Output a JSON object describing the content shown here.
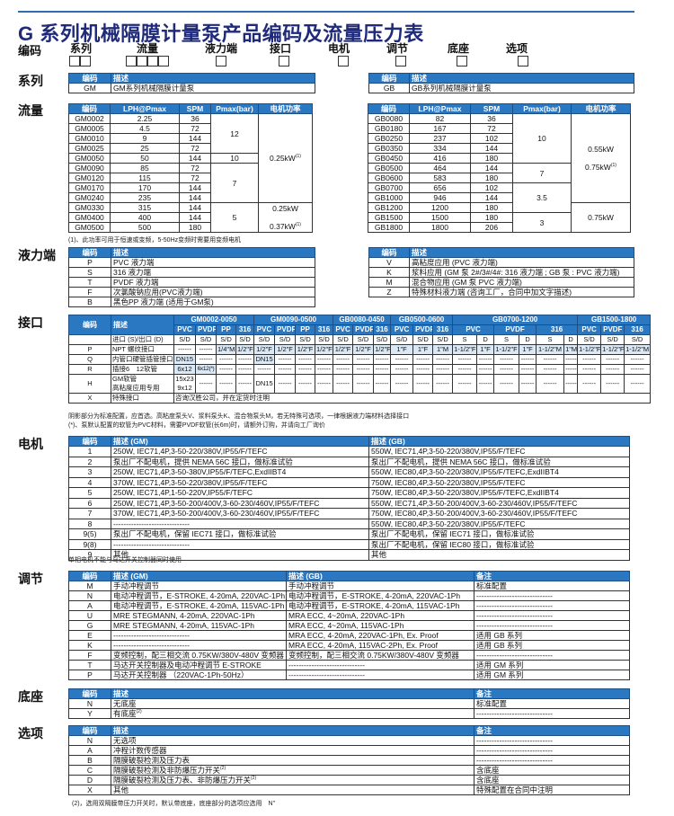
{
  "title": "G 系列机械隔膜计量泵产品编码及流量压力表",
  "code_row": {
    "label": "编码",
    "fields": [
      {
        "label": "系列",
        "boxes": 2
      },
      {
        "label": "流量",
        "boxes": 4
      },
      {
        "label": "液力端",
        "boxes": 1
      },
      {
        "label": "接口",
        "boxes": 1
      },
      {
        "label": "电机",
        "boxes": 1
      },
      {
        "label": "调节",
        "boxes": 1
      },
      {
        "label": "底座",
        "boxes": 1
      },
      {
        "label": "选项",
        "boxes": 1
      }
    ]
  },
  "series": {
    "label": "系列",
    "tables": [
      {
        "headers": [
          "编码",
          "描述"
        ],
        "rows": [
          [
            "GM",
            "GM系列机械隔膜计量泵"
          ]
        ]
      },
      {
        "headers": [
          "编码",
          "描述"
        ],
        "rows": [
          [
            "GB",
            "GB系列机械隔膜计量泵"
          ]
        ]
      }
    ]
  },
  "flow": {
    "label": "流量",
    "note": "(1)、此功率可用于恒速或变频，5-50Hz变频时需要用变频电机",
    "tables": [
      {
        "headers": [
          "编码",
          "LPH@Pmax",
          "SPM",
          "Pmax(bar)",
          "电机功率"
        ],
        "rows": [
          [
            "GM0002",
            "2.25",
            "36"
          ],
          [
            "GM0005",
            "4.5",
            "72"
          ],
          [
            "GM0010",
            "9",
            "144"
          ],
          [
            "GM0025",
            "25",
            "72"
          ],
          [
            "GM0050",
            "50",
            "144"
          ],
          [
            "GM0090",
            "85",
            "72"
          ],
          [
            "GM0120",
            "115",
            "72"
          ],
          [
            "GM0170",
            "170",
            "144"
          ],
          [
            "GM0240",
            "235",
            "144"
          ],
          [
            "GM0330",
            "315",
            "144"
          ],
          [
            "GM0400",
            "400",
            "144"
          ],
          [
            "GM0500",
            "500",
            "180"
          ]
        ],
        "pmax_groups": [
          {
            "value": "12",
            "rows": 4
          },
          {
            "value": "10",
            "rows": 1
          },
          {
            "value": "7",
            "rows": 4
          },
          {
            "value": "5",
            "rows": 3
          }
        ],
        "power_groups": [
          {
            "lines": [
              {
                "text": "0.25kW",
                "sup": "(1)"
              }
            ],
            "rows": 9
          },
          {
            "lines": [
              {
                "text": "0.25kW",
                "sup": ""
              },
              {
                "text": "0.37kW",
                "sup": "(1)"
              }
            ],
            "rows": 3
          }
        ]
      },
      {
        "headers": [
          "编码",
          "LPH@Pmax",
          "SPM",
          "Pmax(bar)",
          "电机功率"
        ],
        "rows": [
          [
            "GB0080",
            "82",
            "36"
          ],
          [
            "GB0180",
            "167",
            "72"
          ],
          [
            "GB0250",
            "237",
            "102"
          ],
          [
            "GB0350",
            "334",
            "144"
          ],
          [
            "GB0450",
            "416",
            "180"
          ],
          [
            "GB0500",
            "464",
            "144"
          ],
          [
            "GB0600",
            "583",
            "180"
          ],
          [
            "GB0700",
            "656",
            "102"
          ],
          [
            "GB1000",
            "946",
            "144"
          ],
          [
            "GB1200",
            "1200",
            "180"
          ],
          [
            "GB1500",
            "1500",
            "180"
          ],
          [
            "GB1800",
            "1800",
            "206"
          ]
        ],
        "pmax_groups": [
          {
            "value": "10",
            "rows": 5
          },
          {
            "value": "7",
            "rows": 2
          },
          {
            "value": "3.5",
            "rows": 3
          },
          {
            "value": "3",
            "rows": 2
          }
        ],
        "power_groups": [
          {
            "lines": [
              {
                "text": "0.55kW",
                "sup": ""
              },
              {
                "text": "0.75kW",
                "sup": "(1)"
              }
            ],
            "rows": 9
          },
          {
            "lines": [
              {
                "text": "0.75kW",
                "sup": ""
              }
            ],
            "rows": 3
          }
        ]
      }
    ]
  },
  "liquid_end": {
    "label": "液力端",
    "tables": [
      {
        "headers": [
          "编码",
          "描述"
        ],
        "rows": [
          [
            "P",
            "PVC 液力端"
          ],
          [
            "S",
            "316 液力端"
          ],
          [
            "T",
            "PVDF 液力端"
          ],
          [
            "F",
            "次氯酸钠应用(PVC液力端)"
          ],
          [
            "B",
            "黑色PP 液力端 (适用于GM泵)"
          ]
        ]
      },
      {
        "headers": [
          "编码",
          "描述"
        ],
        "rows": [
          [
            "V",
            "高粘度应用 (PVC 液力端)"
          ],
          [
            "K",
            "浆料应用 (GM 泵 2#/3#/4#: 316 液力端 ; GB 泵 : PVC 液力端)"
          ],
          [
            "M",
            "混合物应用 (GM 泵 PVC 液力端)"
          ],
          [
            "Z",
            "特殊材料液力端 (咨询工厂，合同中加文字描述)"
          ]
        ]
      }
    ]
  },
  "connection": {
    "label": "接口",
    "headers": [
      "编码",
      "描述"
    ],
    "groups": [
      {
        "label": "GM0002-0050",
        "subs": [
          "PVC",
          "PVDF",
          "PP",
          "316"
        ]
      },
      {
        "label": "GM0090-0500",
        "subs": [
          "PVC",
          "PVDF",
          "PP",
          "316"
        ]
      },
      {
        "label": "GB0080-0450",
        "subs": [
          "PVC",
          "PVDF",
          "316"
        ]
      },
      {
        "label": "GB0500-0600",
        "subs": [
          "PVC",
          "PVDF",
          "316"
        ]
      },
      {
        "label": "GB0700-1200",
        "subs": [
          "PVC",
          "PVDF",
          "316"
        ],
        "double": true
      },
      {
        "label": "GB1500-1800",
        "subs": [
          "PVC",
          "PVDF",
          "316"
        ]
      }
    ],
    "rows": [
      {
        "code": "",
        "desc": "进口 (S)/出口 (D)",
        "cells": [
          "S/D",
          "S/D",
          "S/D",
          "S/D",
          "S/D",
          "S/D",
          "S/D",
          "S/D",
          "S/D",
          "S/D",
          "S/D",
          "S/D",
          "S/D",
          "S/D",
          "S",
          "D",
          "S",
          "D",
          "S",
          "D",
          "S/D",
          "S/D",
          "S/D"
        ],
        "highlight": []
      },
      {
        "code": "P",
        "desc": "NPT 螺纹接口",
        "cells": [
          "------",
          "------",
          "1/4\"M",
          "1/2\"F",
          "1/2\"F",
          "1/2\"F",
          "1/2\"F",
          "1/2\"F",
          "1/2\"F",
          "1/2\"F",
          "1/2\"F",
          "1\"F",
          "1\"F",
          "1\"M",
          "1-1/2\"F",
          "1\"F",
          "1-1/2\"F",
          "1\"F",
          "1-1/2\"M",
          "1\"M",
          "1-1/2\"F",
          "1-1/2\"F",
          "1-1/2\"M"
        ],
        "highlight": [
          2,
          3,
          4,
          5,
          6,
          7,
          8,
          9,
          10,
          11,
          12,
          13,
          14,
          15,
          16,
          17,
          18,
          19,
          20,
          21,
          22
        ]
      },
      {
        "code": "Q",
        "desc": "内管口硬管插管接口",
        "cells": [
          "DN15",
          "------",
          "------",
          "------",
          "DN15",
          "------",
          "------",
          "------",
          "------",
          "------",
          "------",
          "------",
          "------",
          "------",
          "------",
          "------",
          "------",
          "------",
          "------",
          "------",
          "------",
          "------",
          "------"
        ],
        "highlight": [
          0,
          4
        ]
      },
      {
        "code": "R",
        "desc": "插接6　12软管",
        "cells": [
          "6x12",
          "6x12(*)",
          "------",
          "------",
          "------",
          "------",
          "------",
          "------",
          "------",
          "------",
          "------",
          "------",
          "------",
          "------",
          "------",
          "------",
          "------",
          "------",
          "------",
          "------",
          "------",
          "------",
          "------"
        ],
        "highlight": [
          0,
          1
        ]
      },
      {
        "code": "H",
        "desc": "GM软管\n高粘度应用专用",
        "cells": [
          "15x23\n9x12",
          "------",
          "------",
          "------",
          "DN15",
          "------",
          "------",
          "------",
          "------",
          "------",
          "------",
          "------",
          "------",
          "------",
          "------",
          "------",
          "------",
          "------",
          "------",
          "------",
          "------",
          "------",
          "------"
        ],
        "highlight": []
      },
      {
        "code": "X",
        "desc": "特殊接口",
        "span_text": "咨询汉胜公司，并在定货时注明"
      }
    ],
    "notes": [
      "阴影部分为标准配置，应首选。高粘度泵头V、浆料泵头K、混合物泵头M，若无特殊可选项，一律根据液力端材料选择接口",
      "(*)、泵默认配置的软管为PVC材料，需要PVDF软管(长6m)时，请额外订购，并请向工厂询价"
    ]
  },
  "motor": {
    "label": "电机",
    "headers": [
      "编码",
      "描述 (GM)",
      "描述 (GB)"
    ],
    "note": "单相电机不能与马达开关控制器同时使用",
    "rows": [
      [
        "1",
        "250W, IEC71,4P,3-50-220/380V,IP55/F/TEFC",
        "550W, IEC71,4P,3-50-220/380V,IP55/F/TEFC"
      ],
      [
        "2",
        "泵出厂不配电机，提供 NEMA 56C 接口，做标准试验",
        "泵出厂不配电机，提供 NEMA 56C 接口，做标准试验"
      ],
      [
        "3",
        "250W, IEC71,4P,3-50-380V,IP55/F/TEFC,ExdIIBT4",
        "550W, IEC80,4P,3-50-220/380V,IP55/F/TEFC,ExdIIBT4"
      ],
      [
        "4",
        "370W, IEC71,4P,3-50-220/380V,IP55/F/TEFC",
        "750W, IEC80,4P,3-50-220/380V,IP55/F/TEFC"
      ],
      [
        "5",
        "250W, IEC71,4P,1-50-220V,IP55/F/TEFC",
        "750W, IEC80,4P,3-50-220/380V,IP55/F/TEFC,ExdIIBT4"
      ],
      [
        "6",
        "250W, IEC71,4P,3-50-200/400V,3-60-230/460V,IP55/F/TEFC",
        "550W, IEC71,4P,3-50-200/400V,3-60-230/460V,IP55/F/TEFC"
      ],
      [
        "7",
        "370W, IEC71,4P,3-50-200/400V,3-60-230/460V,IP55/F/TEFC",
        "750W, IEC80,4P,3-50-200/400V,3-60-230/460V,IP55/F/TEFC"
      ],
      [
        "8",
        "------------------------------",
        "550W, IEC80,4P,3-50-220/380V,IP55/F/TEFC"
      ],
      [
        "9(5)",
        "泵出厂不配电机，保留 IEC71 接口，做标准试验",
        "泵出厂不配电机，保留 IEC71 接口，做标准试验"
      ],
      [
        "9(8)",
        "------------------------------",
        "泵出厂不配电机，保留 IEC80 接口，做标准试验"
      ],
      [
        "9",
        "其他",
        "其他"
      ]
    ]
  },
  "control": {
    "label": "调节",
    "headers": [
      "编码",
      "描述 (GM)",
      "描述 (GB)",
      "备注"
    ],
    "rows": [
      [
        "M",
        "手动冲程调节",
        "手动冲程调节",
        "标准配置"
      ],
      [
        "N",
        "电动冲程调节，E-STROKE, 4-20mA, 220VAC-1Ph",
        "电动冲程调节，E-STROKE, 4-20mA, 220VAC-1Ph",
        "------------------------------"
      ],
      [
        "A",
        "电动冲程调节，E-STROKE, 4-20mA, 115VAC-1Ph",
        "电动冲程调节，E-STROKE, 4-20mA, 115VAC-1Ph",
        "------------------------------"
      ],
      [
        "U",
        "MRE STEGMANN, 4-20mA, 220VAC-1Ph",
        "MRA ECC, 4~20mA, 220VAC-1Ph",
        "------------------------------"
      ],
      [
        "G",
        "MRE STEGMANN, 4-20mA, 115VAC-1Ph",
        "MRA ECC, 4~20mA, 115VAC-1Ph",
        "------------------------------"
      ],
      [
        "E",
        "------------------------------",
        "MRA ECC, 4-20mA, 220VAC-1Ph, Ex. Proof",
        "适用 GB 系列"
      ],
      [
        "K",
        "------------------------------",
        "MRA ECC, 4-20mA, 115VAC-2Ph, Ex. Proof",
        "适用 GB 系列"
      ],
      [
        "F",
        "变频控制，配三相交流 0.75KW/380V-480V 变频器",
        "变频控制，配三相交流 0.75KW/380V-480V 变频器",
        "------------------------------"
      ],
      [
        "T",
        "马达开关控制器及电动冲程调节 E-STROKE",
        "------------------------------",
        "适用 GM 系列"
      ],
      [
        "P",
        "马达开关控制器 （220VAC-1Ph-50Hz）",
        "------------------------------",
        "适用 GM 系列"
      ]
    ]
  },
  "base": {
    "label": "底座",
    "headers": [
      "编码",
      "描述",
      "备注"
    ],
    "rows": [
      {
        "code": "N",
        "desc": "无底座",
        "sup": "",
        "note": "标准配置"
      },
      {
        "code": "Y",
        "desc": "有底座",
        "sup": "(2)",
        "note": "------------------------------"
      }
    ]
  },
  "options": {
    "label": "选项",
    "headers": [
      "编码",
      "描述",
      "备注"
    ],
    "note": "(2)，选用双隔膜带压力开关时，默认带底座，底座部分的选项应选用　N\"",
    "rows": [
      {
        "code": "N",
        "desc": "无选项",
        "sup": "",
        "note": "------------------------------"
      },
      {
        "code": "A",
        "desc": "冲程计数传感器",
        "sup": "",
        "note": "------------------------------"
      },
      {
        "code": "B",
        "desc": "隔膜破裂检测及压力表",
        "sup": "",
        "note": "------------------------------"
      },
      {
        "code": "C",
        "desc": "隔膜破裂检测及非防爆压力开关",
        "sup": "(2)",
        "note": "含底座"
      },
      {
        "code": "D",
        "desc": "隔膜破裂检测及压力表、非防爆压力开关",
        "sup": "(2)",
        "note": "含底座"
      },
      {
        "code": "X",
        "desc": "其他",
        "sup": "",
        "note": "特殊配置在合同中注明"
      }
    ]
  },
  "colors": {
    "header_bg": "#2b78c2",
    "title": "#1f2a7a",
    "highlight": "#dbe8f6"
  }
}
